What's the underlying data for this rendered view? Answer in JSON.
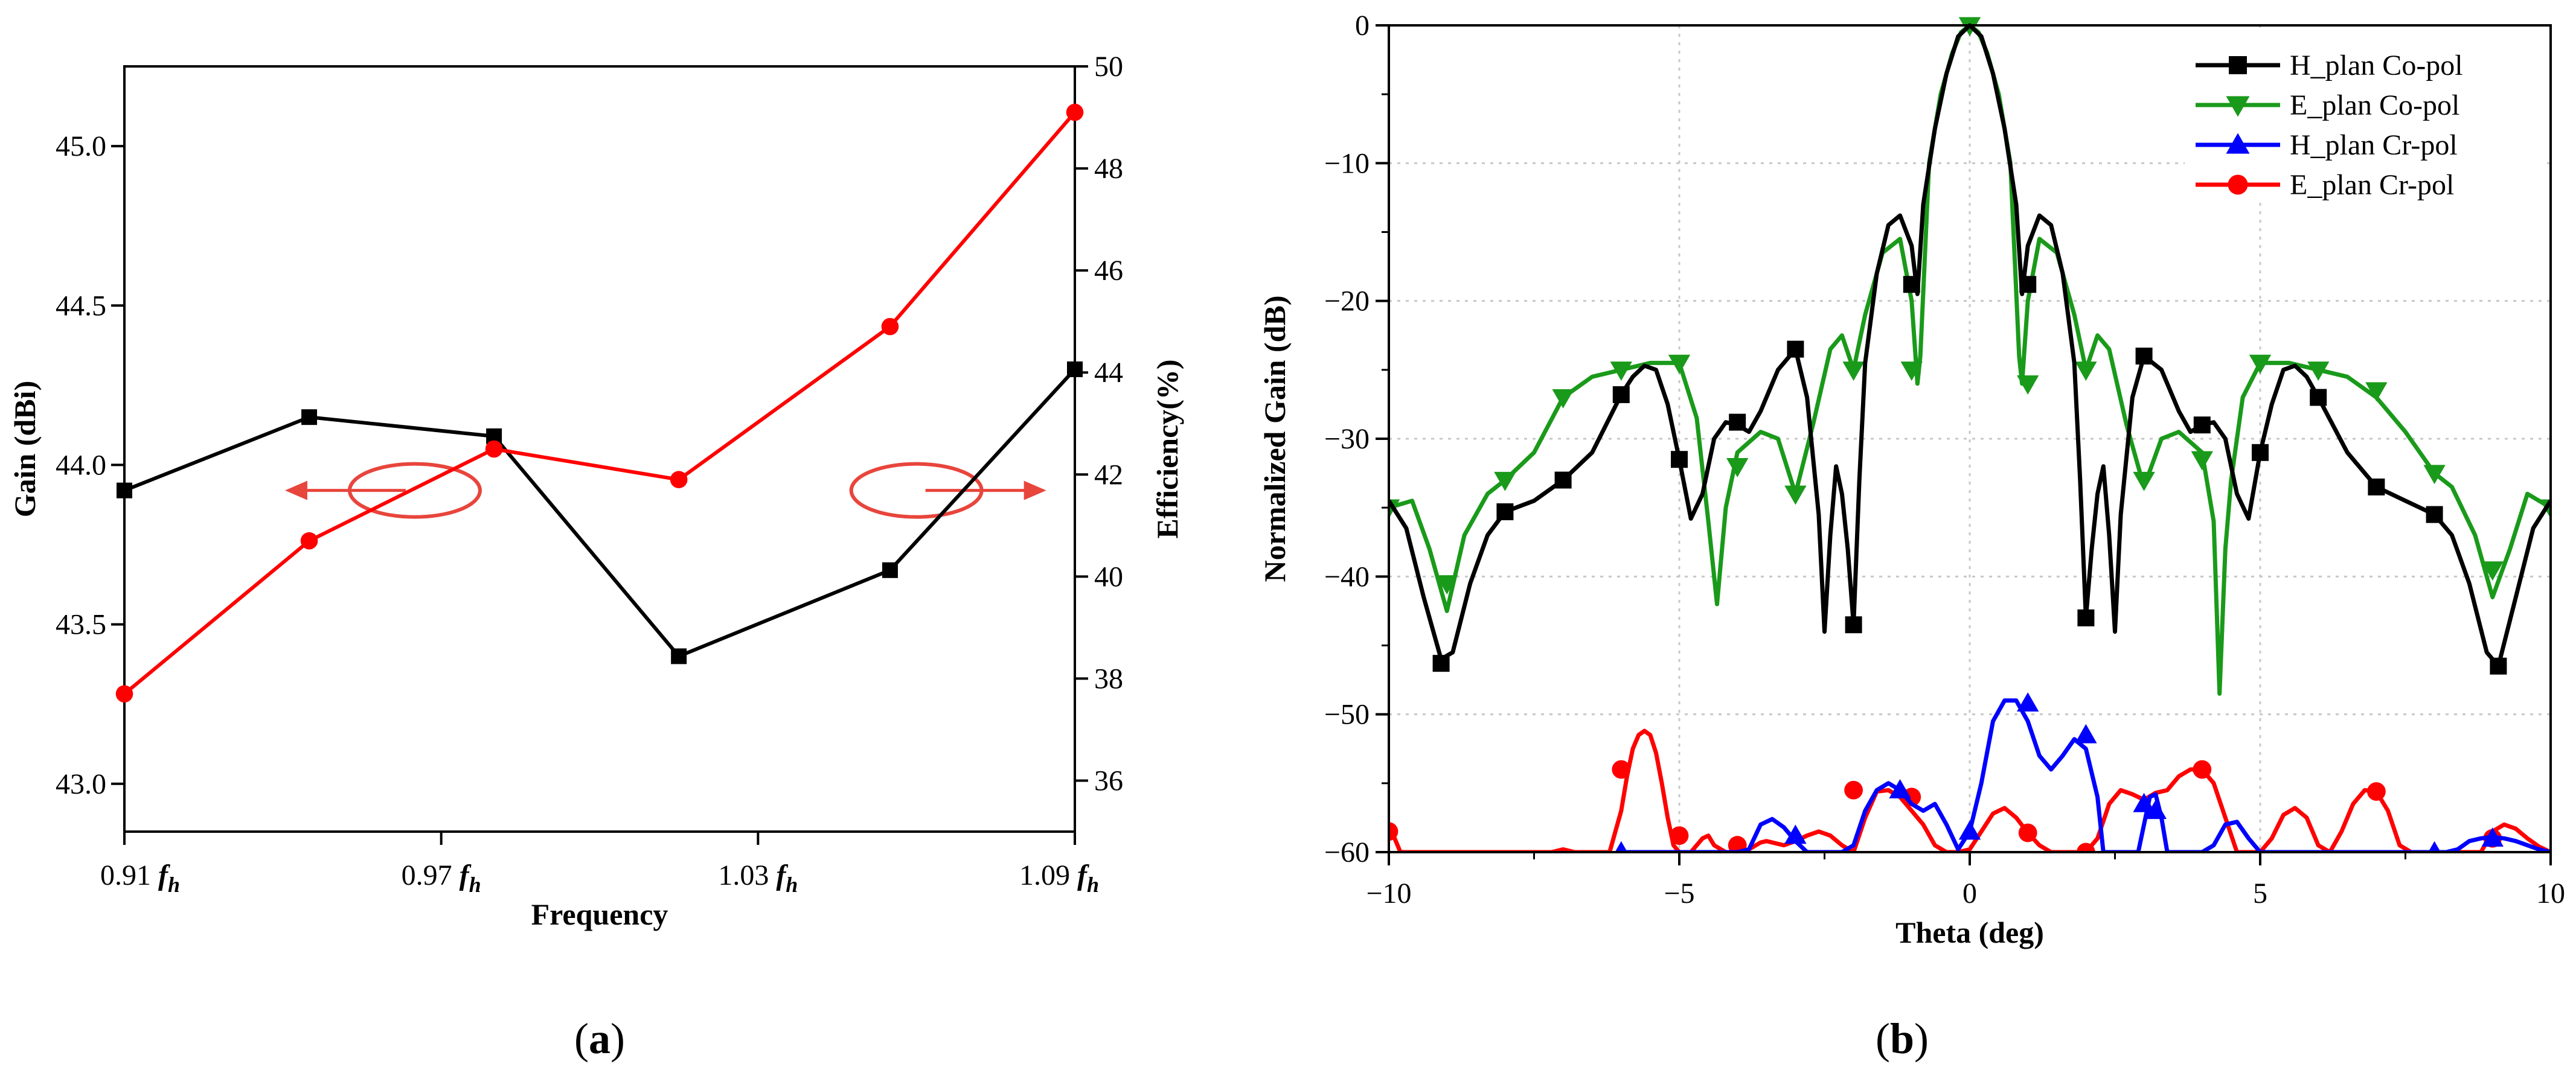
{
  "chart_data": [
    {
      "type": "line",
      "panel": "a",
      "caption_open": "(",
      "caption_letter": "a",
      "caption_close": ")",
      "xlabel": "Frequency",
      "ylabel_left": "Gain (dBi)",
      "ylabel_right": "Efficiency(%)",
      "x_ticks": [
        {
          "value": 0.91,
          "label": "0.91",
          "unit": "f",
          "sub": "h"
        },
        {
          "value": 0.97,
          "label": "0.97",
          "unit": "f",
          "sub": "h"
        },
        {
          "value": 1.03,
          "label": "1.03",
          "unit": "f",
          "sub": "h"
        },
        {
          "value": 1.09,
          "label": "1.09",
          "unit": "f",
          "sub": "h"
        }
      ],
      "xlim": [
        0.91,
        1.09
      ],
      "ylim_left": [
        42.85,
        45.25
      ],
      "ylim_right": [
        35,
        50
      ],
      "yticks_left": [
        43.0,
        43.5,
        44.0,
        44.5,
        45.0
      ],
      "yticks_right": [
        36,
        38,
        40,
        42,
        44,
        46,
        48,
        50
      ],
      "series": [
        {
          "name": "Gain",
          "axis": "left",
          "color": "#000000",
          "marker": "square",
          "x": [
            0.91,
            0.945,
            0.98,
            1.015,
            1.055,
            1.09
          ],
          "values": [
            43.92,
            44.15,
            44.09,
            43.4,
            43.67,
            44.3
          ]
        },
        {
          "name": "Efficiency",
          "axis": "right",
          "color": "#ff0000",
          "marker": "circle",
          "x": [
            0.91,
            0.945,
            0.98,
            1.015,
            1.055,
            1.09
          ],
          "values": [
            37.7,
            40.7,
            42.5,
            41.9,
            44.9,
            49.1
          ]
        }
      ],
      "annotations": [
        {
          "type": "ellipse-arrow",
          "points_to": "left-axis",
          "x": 0.965,
          "y_left": 43.92,
          "color": "#e8453c"
        },
        {
          "type": "ellipse-arrow",
          "points_to": "right-axis",
          "x": 1.06,
          "y_left": 43.92,
          "color": "#e8453c"
        }
      ]
    },
    {
      "type": "line",
      "panel": "b",
      "caption_open": "(",
      "caption_letter": "b",
      "caption_close": ")",
      "xlabel": "Theta (deg)",
      "ylabel": "Normalized Gain (dB)",
      "xlim": [
        -10,
        10
      ],
      "ylim": [
        -60,
        0
      ],
      "x_ticks": [
        "−10",
        "−5",
        "0",
        "5",
        "10"
      ],
      "x_tick_values": [
        -10,
        -5,
        0,
        5,
        10
      ],
      "y_ticks": [
        "0",
        "−10",
        "−20",
        "−30",
        "−40",
        "−50",
        "−60"
      ],
      "y_tick_values": [
        0,
        -10,
        -20,
        -30,
        -40,
        -50,
        -60
      ],
      "grid": true,
      "legend_position": "top-right",
      "series": [
        {
          "name": "H_plan Co-pol",
          "color": "#000000",
          "marker": "square",
          "x": [
            -10,
            -9.7,
            -9.4,
            -9.1,
            -8.9,
            -8.6,
            -8.3,
            -8.0,
            -7.5,
            -7.0,
            -6.5,
            -6.0,
            -5.8,
            -5.6,
            -5.4,
            -5.2,
            -5.0,
            -4.8,
            -4.6,
            -4.4,
            -4.2,
            -4.0,
            -3.8,
            -3.6,
            -3.3,
            -3.0,
            -2.8,
            -2.6,
            -2.5,
            -2.4,
            -2.3,
            -2.2,
            -2.1,
            -2.0,
            -1.9,
            -1.8,
            -1.6,
            -1.4,
            -1.2,
            -1.0,
            -0.9,
            -0.8,
            -0.6,
            -0.4,
            -0.2,
            0,
            0.2,
            0.4,
            0.6,
            0.8,
            0.9,
            1.0,
            1.2,
            1.4,
            1.6,
            1.8,
            1.9,
            2.0,
            2.1,
            2.2,
            2.3,
            2.4,
            2.5,
            2.6,
            2.8,
            3.0,
            3.3,
            3.6,
            3.8,
            4.0,
            4.2,
            4.4,
            4.6,
            4.8,
            5.0,
            5.2,
            5.4,
            5.6,
            5.8,
            6.0,
            6.5,
            7.0,
            7.5,
            8.0,
            8.3,
            8.6,
            8.9,
            9.1,
            9.4,
            9.7,
            10
          ],
          "values": [
            -34.5,
            -36.5,
            -41.5,
            -46.0,
            -45.5,
            -40.5,
            -37.0,
            -35.3,
            -34.5,
            -33.0,
            -31.0,
            -26.8,
            -25.5,
            -24.7,
            -25.0,
            -27.5,
            -31.5,
            -35.8,
            -34.0,
            -30.0,
            -28.8,
            -29.0,
            -29.5,
            -28.0,
            -25.0,
            -23.5,
            -27.0,
            -35.5,
            -44.0,
            -37.0,
            -32.0,
            -34.0,
            -38.0,
            -43.5,
            -33.0,
            -24.5,
            -18.0,
            -14.5,
            -13.8,
            -16.0,
            -19.5,
            -13.0,
            -7.5,
            -3.5,
            -0.8,
            0.0,
            -0.8,
            -3.5,
            -7.5,
            -13.0,
            -19.5,
            -16.0,
            -13.8,
            -14.5,
            -18.0,
            -24.5,
            -33.0,
            -43.0,
            -38.0,
            -34.0,
            -32.0,
            -37.0,
            -44.0,
            -35.5,
            -27.0,
            -24.0,
            -25.0,
            -28.0,
            -29.5,
            -29.0,
            -28.8,
            -30.0,
            -34.0,
            -35.8,
            -31.0,
            -27.5,
            -25.0,
            -24.7,
            -25.5,
            -27.0,
            -31.0,
            -33.5,
            -34.5,
            -35.5,
            -37.0,
            -40.5,
            -45.5,
            -46.5,
            -41.5,
            -36.5,
            -34.5
          ],
          "marker_x": [
            -9.1,
            -8,
            -7,
            -6,
            -5,
            -4,
            -3,
            -2,
            -1,
            1,
            2,
            3,
            4,
            5,
            6,
            7,
            8,
            9.1
          ],
          "marker_values": [
            -46.3,
            -35.3,
            -33.0,
            -26.8,
            -31.5,
            -28.8,
            -23.5,
            -43.5,
            -18.8,
            -18.8,
            -43.0,
            -24.0,
            -29.0,
            -31.0,
            -27.0,
            -33.5,
            -35.5,
            -46.5
          ]
        },
        {
          "name": "E_plan Co-pol",
          "color": "#1a9a1a",
          "marker": "triangle-down",
          "x": [
            -10,
            -9.6,
            -9.3,
            -9.0,
            -8.7,
            -8.3,
            -8.0,
            -7.5,
            -7.0,
            -6.5,
            -6.0,
            -5.5,
            -5.0,
            -4.7,
            -4.5,
            -4.35,
            -4.2,
            -4.0,
            -3.6,
            -3.3,
            -3.0,
            -2.7,
            -2.4,
            -2.2,
            -2.0,
            -1.8,
            -1.5,
            -1.2,
            -1.0,
            -0.9,
            -0.85,
            -0.7,
            -0.5,
            -0.3,
            -0.15,
            0,
            0.15,
            0.3,
            0.5,
            0.7,
            0.85,
            0.9,
            1.0,
            1.2,
            1.5,
            1.8,
            2.0,
            2.2,
            2.4,
            2.7,
            3.0,
            3.3,
            3.6,
            4.0,
            4.2,
            4.3,
            4.4,
            4.5,
            4.7,
            5.0,
            5.5,
            6.0,
            6.5,
            7.0,
            7.5,
            8.0,
            8.3,
            8.7,
            9.0,
            9.3,
            9.6,
            10
          ],
          "values": [
            -35.0,
            -34.5,
            -38.0,
            -42.5,
            -37.0,
            -34.0,
            -33.0,
            -31.0,
            -27.0,
            -25.5,
            -25.0,
            -24.5,
            -24.5,
            -28.5,
            -36.0,
            -42.0,
            -35.0,
            -31.0,
            -29.5,
            -30.0,
            -34.0,
            -29.0,
            -23.5,
            -22.5,
            -25.0,
            -21.0,
            -16.5,
            -15.5,
            -20.0,
            -26.0,
            -24.0,
            -10.0,
            -5.0,
            -2.0,
            -0.5,
            0.0,
            -0.5,
            -2.0,
            -5.0,
            -10.0,
            -24.0,
            -26.0,
            -20.0,
            -15.5,
            -16.5,
            -21.0,
            -25.0,
            -22.5,
            -23.5,
            -29.0,
            -33.5,
            -30.0,
            -29.5,
            -31.0,
            -36.0,
            -48.5,
            -38.0,
            -33.0,
            -27.0,
            -24.5,
            -24.5,
            -25.0,
            -25.5,
            -27.0,
            -29.5,
            -32.5,
            -33.5,
            -37.0,
            -41.5,
            -38.0,
            -34.0,
            -35.0
          ],
          "marker_x": [
            -10,
            -9,
            -8,
            -7,
            -6,
            -5,
            -4,
            -3,
            -2,
            -1,
            0,
            1,
            2,
            3,
            4,
            5,
            6,
            7,
            8,
            9,
            10
          ],
          "marker_values": [
            -35.0,
            -40.5,
            -33.0,
            -27.0,
            -25.0,
            -24.5,
            -32.0,
            -34.0,
            -25.0,
            -25.0,
            0.0,
            -26.0,
            -25.0,
            -33.0,
            -31.5,
            -24.5,
            -25.0,
            -26.5,
            -32.5,
            -39.5,
            -35.0
          ]
        },
        {
          "name": "H_plan Cr-pol",
          "color": "#0000ff",
          "marker": "triangle-up",
          "x": [
            -6.0,
            -5.9,
            -5.8,
            -5.6,
            -5.4,
            -5.2,
            -5.0,
            -4.8,
            -4.5,
            -4.2,
            -4.0,
            -3.8,
            -3.6,
            -3.4,
            -3.2,
            -3.0,
            -2.8,
            -2.6,
            -2.4,
            -2.2,
            -2.0,
            -1.8,
            -1.6,
            -1.4,
            -1.2,
            -1.0,
            -0.8,
            -0.6,
            -0.4,
            -0.2,
            0,
            0.2,
            0.4,
            0.6,
            0.8,
            1.0,
            1.2,
            1.4,
            1.6,
            1.8,
            2.0,
            2.2,
            2.3,
            2.4,
            2.5,
            2.6,
            2.7,
            2.8,
            2.9,
            3.0,
            3.1,
            3.2,
            3.3,
            3.4,
            3.5,
            3.6,
            3.7,
            3.8,
            4.0,
            4.2,
            4.4,
            4.6,
            4.8,
            5.0,
            5.5,
            6.0,
            6.5,
            7.0,
            7.5,
            8.0,
            8.2,
            8.4,
            8.6,
            8.8,
            9.0,
            9.2,
            9.4,
            9.6,
            9.8,
            10
          ],
          "values": [
            -60,
            -60,
            -60,
            -60,
            -60,
            -60,
            -60,
            -60,
            -60,
            -60,
            -60,
            -59.8,
            -58.0,
            -57.6,
            -58.2,
            -59.2,
            -60,
            -60,
            -60,
            -60,
            -59.5,
            -57.0,
            -55.5,
            -55.0,
            -55.5,
            -56.5,
            -57.0,
            -56.5,
            -58.0,
            -59.8,
            -58.5,
            -55.0,
            -50.5,
            -49.0,
            -49.0,
            -50.5,
            -53.0,
            -54.0,
            -53.0,
            -51.8,
            -52.5,
            -56.0,
            -60,
            -60,
            -60,
            -60,
            -60,
            -60,
            -60,
            -58.0,
            -56.0,
            -55.8,
            -57.5,
            -60,
            -60,
            -60,
            -60,
            -60,
            -60,
            -59.5,
            -58.0,
            -57.8,
            -59.0,
            -60,
            -60,
            -60,
            -60,
            -60,
            -60,
            -60,
            -60,
            -59.8,
            -59.2,
            -59.0,
            -58.9,
            -59.0,
            -59.2,
            -59.5,
            -59.8,
            -60
          ],
          "marker_x": [
            -6,
            -3,
            -1.2,
            0,
            1,
            2,
            3,
            3.2,
            8,
            9
          ],
          "marker_values": [
            -60,
            -58.8,
            -55.5,
            -58.5,
            -49.2,
            -51.5,
            -56.5,
            -57.0,
            -60,
            -59.0
          ]
        },
        {
          "name": "E_plan Cr-pol",
          "color": "#ff0000",
          "marker": "circle",
          "x": [
            -10,
            -9.9,
            -9.8,
            -9.7,
            -7.2,
            -7.0,
            -6.8,
            -6.5,
            -6.2,
            -6.0,
            -5.9,
            -5.8,
            -5.7,
            -5.6,
            -5.5,
            -5.4,
            -5.3,
            -5.2,
            -5.1,
            -5.0,
            -4.9,
            -4.8,
            -4.6,
            -4.5,
            -4.4,
            -4.2,
            -4.0,
            -3.9,
            -3.8,
            -3.6,
            -3.5,
            -3.2,
            -3.0,
            -2.8,
            -2.6,
            -2.4,
            -2.2,
            -2.0,
            -1.8,
            -1.6,
            -1.4,
            -1.2,
            -1.0,
            -0.8,
            -0.6,
            -0.4,
            -0.2,
            0,
            0.2,
            0.4,
            0.6,
            0.8,
            1.0,
            1.2,
            1.4,
            1.6,
            1.8,
            2.0,
            2.2,
            2.4,
            2.6,
            2.8,
            3.0,
            3.2,
            3.4,
            3.6,
            3.8,
            4.0,
            4.2,
            4.4,
            4.6,
            4.8,
            5.0,
            5.2,
            5.4,
            5.6,
            5.8,
            6.0,
            6.2,
            6.4,
            6.6,
            6.8,
            7.0,
            7.2,
            7.4,
            7.6,
            7.8,
            8.0,
            8.2,
            8.4,
            8.6,
            8.8,
            9.0,
            9.2,
            9.4,
            9.6,
            9.8,
            10
          ],
          "values": [
            -58.2,
            -59,
            -60,
            -60,
            -60,
            -59.8,
            -60,
            -60,
            -60,
            -57.0,
            -54.5,
            -52.5,
            -51.5,
            -51.2,
            -51.5,
            -52.8,
            -55.0,
            -57.5,
            -59.5,
            -60,
            -60,
            -60,
            -59.0,
            -58.8,
            -59.5,
            -60,
            -60,
            -60,
            -59.8,
            -59.3,
            -59.2,
            -59.5,
            -59.2,
            -58.8,
            -58.5,
            -58.8,
            -59.5,
            -60,
            -57.5,
            -55.6,
            -55.5,
            -56.0,
            -57.0,
            -58.0,
            -59.5,
            -60,
            -60,
            -59.8,
            -58.5,
            -57.2,
            -56.8,
            -57.5,
            -58.6,
            -59.5,
            -60,
            -60,
            -60,
            -60,
            -59.0,
            -56.5,
            -55.5,
            -55.8,
            -56.2,
            -55.7,
            -55.5,
            -54.5,
            -54.0,
            -54.0,
            -55.0,
            -57.5,
            -60,
            -60,
            -60,
            -59.0,
            -57.3,
            -56.8,
            -57.5,
            -59.5,
            -60,
            -58.5,
            -56.5,
            -55.5,
            -55.6,
            -57.0,
            -59.5,
            -60,
            -60,
            -60,
            -60,
            -60,
            -60,
            -60,
            -58.5,
            -58.0,
            -58.3,
            -59.0,
            -59.6,
            -60
          ],
          "marker_x": [
            -10,
            -6.0,
            -5.0,
            -4.0,
            -2.0,
            -1.0,
            1.0,
            2.0,
            4.0,
            7.0,
            9.0
          ],
          "marker_values": [
            -58.5,
            -54.0,
            -58.8,
            -59.5,
            -55.5,
            -56.0,
            -58.6,
            -60,
            -54.0,
            -55.6,
            -59.0
          ]
        }
      ]
    }
  ]
}
